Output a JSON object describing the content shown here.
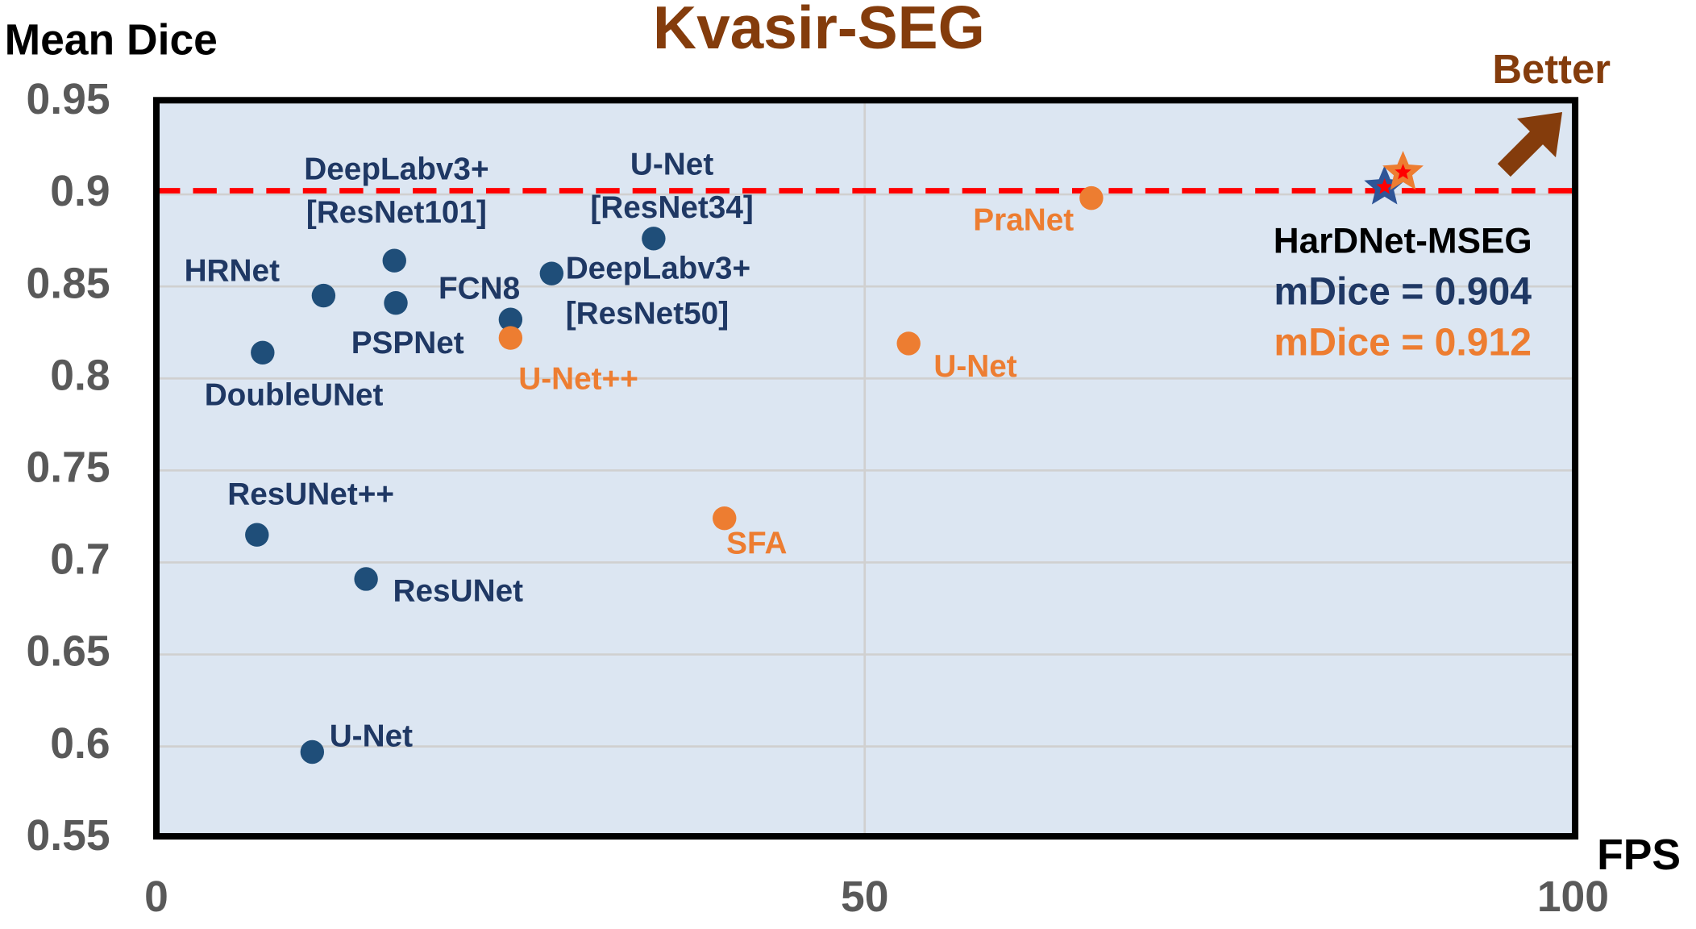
{
  "chart_data": {
    "type": "scatter",
    "title": "Kvasir-SEG",
    "xlabel": "FPS",
    "ylabel": "Mean Dice",
    "xlim": [
      0,
      100
    ],
    "ylim": [
      0.55,
      0.95
    ],
    "xticks": [
      0,
      50,
      100
    ],
    "yticks": [
      0.55,
      0.6,
      0.65,
      0.7,
      0.75,
      0.8,
      0.85,
      0.9,
      0.95
    ],
    "grid": true,
    "reference_line": {
      "value": 0.902,
      "color": "#ff0000",
      "style": "dashed"
    },
    "series": [
      {
        "color": "#1f4e79",
        "marker": "circle",
        "x": [
          16.8,
          11.8,
          16.9,
          25.0,
          27.9,
          35.1,
          7.5,
          7.1,
          14.8,
          11.0
        ],
        "values": [
          0.864,
          0.845,
          0.841,
          0.832,
          0.857,
          0.876,
          0.814,
          0.715,
          0.691,
          0.597
        ],
        "labels": [
          [
            "DeepLabv3+",
            "[ResNet101]"
          ],
          [
            "HRNet"
          ],
          [
            "PSPNet"
          ],
          [
            "FCN8"
          ],
          [
            "DeepLabv3+",
            "[ResNet50]"
          ],
          [
            "U-Net",
            "[ResNet34]"
          ],
          [
            "DoubleUNet"
          ],
          [
            "ResUNet++"
          ],
          [
            "ResUNet"
          ],
          [
            "U-Net"
          ]
        ]
      },
      {
        "color": "#ed7d31",
        "marker": "circle",
        "x": [
          66.0,
          25.0,
          53.1,
          40.1
        ],
        "values": [
          0.898,
          0.822,
          0.819,
          0.724
        ],
        "labels": [
          [
            "PraNet"
          ],
          [
            "U-Net++"
          ],
          [
            "U-Net"
          ],
          [
            "SFA"
          ]
        ]
      },
      {
        "color": "#2f5597",
        "marker": "star",
        "x": [
          86.7
        ],
        "values": [
          0.904
        ]
      },
      {
        "color": "#ed7d31",
        "marker": "star",
        "x": [
          88.0
        ],
        "values": [
          0.912
        ]
      }
    ],
    "annotations": [
      {
        "text": "HarDNet-MSEG",
        "color": "#000000"
      },
      {
        "text": "mDice = 0.904",
        "color": "#1f3864"
      },
      {
        "text": "mDice = 0.912",
        "color": "#ed7d31"
      },
      {
        "text": "Better",
        "color": "#843c0c"
      }
    ]
  }
}
